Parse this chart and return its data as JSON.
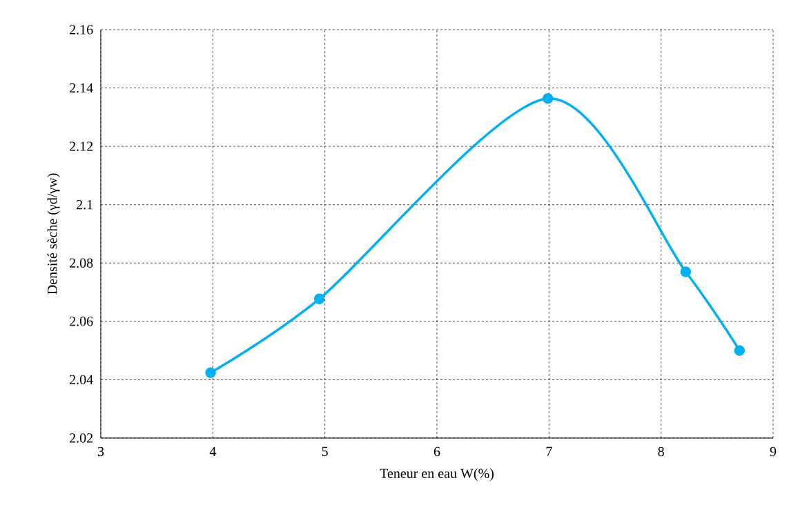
{
  "chart_data": {
    "type": "line",
    "xlabel": "Teneur en eau W(%)",
    "ylabel": "Densité sèche (γd/γw)",
    "x": [
      3.98,
      4.95,
      6.99,
      8.22,
      8.7
    ],
    "values": [
      2.0424,
      2.0677,
      2.1364,
      2.077,
      2.05
    ],
    "color": "#00b0f0",
    "xlim": [
      3,
      9
    ],
    "ylim": [
      2.02,
      2.16
    ],
    "xticks": [
      3,
      4,
      5,
      6,
      7,
      8,
      9
    ],
    "yticks": [
      2.02,
      2.04,
      2.06,
      2.08,
      2.1,
      2.12,
      2.14,
      2.16
    ],
    "grid": true,
    "marker": "circle",
    "line_style": "solid"
  }
}
